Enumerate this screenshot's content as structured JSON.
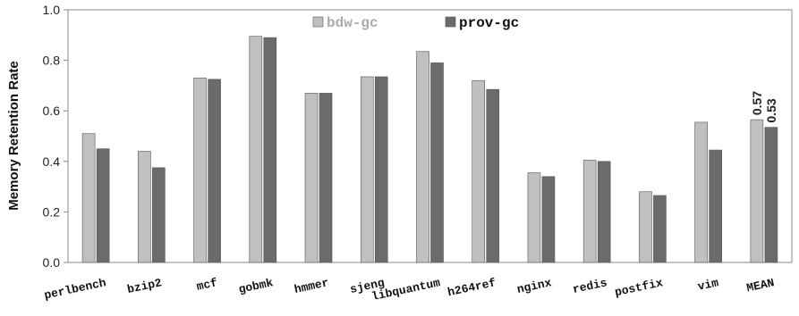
{
  "chart_data": {
    "type": "bar",
    "title": "",
    "xlabel": "",
    "ylabel": "Memory Retention Rate",
    "ylim": [
      0,
      1.0
    ],
    "yticks": [
      "0.0",
      "0.2",
      "0.4",
      "0.6",
      "0.8",
      "1.0"
    ],
    "categories": [
      "perlbench",
      "bzip2",
      "mcf",
      "gobmk",
      "hmmer",
      "sjeng",
      "libquantum",
      "h264ref",
      "nginx",
      "redis",
      "postfix",
      "vim",
      "MEAN"
    ],
    "series": [
      {
        "name": "bdw-gc",
        "color": "#c0c0c0",
        "values": [
          0.51,
          0.44,
          0.73,
          0.895,
          0.67,
          0.735,
          0.835,
          0.72,
          0.355,
          0.405,
          0.28,
          0.555,
          0.565
        ]
      },
      {
        "name": "prov-gc",
        "color": "#6b6b6b",
        "values": [
          0.45,
          0.375,
          0.725,
          0.89,
          0.67,
          0.735,
          0.79,
          0.685,
          0.34,
          0.4,
          0.265,
          0.445,
          0.535
        ]
      }
    ],
    "data_labels": [
      "0.57",
      "0.53"
    ],
    "legend_position": "top-center",
    "grid": false
  }
}
